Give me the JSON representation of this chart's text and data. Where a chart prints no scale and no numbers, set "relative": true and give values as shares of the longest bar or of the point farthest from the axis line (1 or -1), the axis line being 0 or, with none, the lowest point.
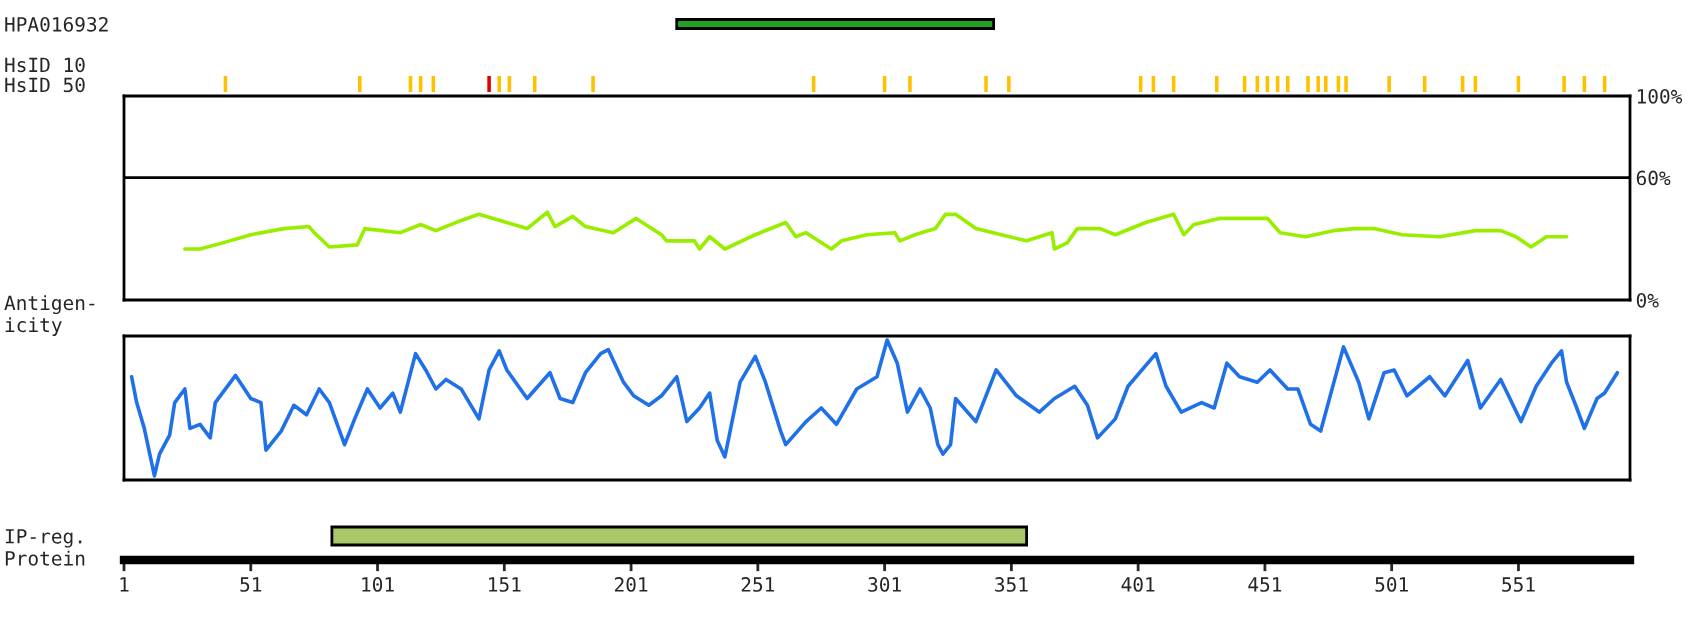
{
  "chart_data": [
    {
      "type": "bar",
      "orientation": "horizontal",
      "categories": [
        "HPA016932"
      ],
      "base": [
        219
      ],
      "values": [
        125
      ],
      "colors": [
        "#22a022"
      ],
      "xlim": [
        1,
        595
      ],
      "tick_labels": "y"
    },
    {
      "type": "bar",
      "ylabel": "HsID 10",
      "relative": true,
      "x": [
        41,
        94,
        114,
        118,
        123,
        145,
        149,
        153,
        163,
        186,
        273,
        301,
        311,
        341,
        350,
        402,
        407,
        415,
        432,
        443,
        448,
        452,
        456,
        460,
        468,
        472,
        475,
        480,
        483,
        500,
        514,
        529,
        534,
        551,
        569,
        577,
        585
      ],
      "values": [
        1,
        1,
        1,
        1,
        1,
        1,
        1,
        1,
        1,
        1,
        1,
        1,
        1,
        1,
        1,
        1,
        1,
        1,
        1,
        1,
        1,
        1,
        1,
        1,
        1,
        1,
        1,
        1,
        1,
        1,
        1,
        1,
        1,
        1,
        1,
        1,
        1
      ],
      "colors": [
        "#ffc000",
        "#ffc000",
        "#ffc000",
        "#ffc000",
        "#ffc000",
        "#e00000",
        "#ffc000",
        "#ffc000",
        "#ffc000",
        "#ffc000",
        "#ffc000",
        "#ffc000",
        "#ffc000",
        "#ffc000",
        "#ffc000",
        "#ffc000",
        "#ffc000",
        "#ffc000",
        "#ffc000",
        "#ffc000",
        "#ffc000",
        "#ffc000",
        "#ffc000",
        "#ffc000",
        "#ffc000",
        "#ffc000",
        "#ffc000",
        "#ffc000",
        "#ffc000",
        "#ffc000",
        "#ffc000",
        "#ffc000",
        "#ffc000",
        "#ffc000",
        "#ffc000",
        "#ffc000",
        "#ffc000"
      ],
      "xlim": [
        1,
        595
      ],
      "tick_labels": false
    },
    {
      "type": "line",
      "ylabel": "HsID 50",
      "xlim": [
        1,
        595
      ],
      "ylim": [
        0,
        100
      ],
      "yticks": [
        {
          "value": 0,
          "label": "0%"
        },
        {
          "value": 60,
          "label": "60%"
        },
        {
          "value": 100,
          "label": "100%"
        }
      ],
      "tick_labels": "y",
      "ref_lines": [
        {
          "axis": "y",
          "value": 60,
          "color": "#000000"
        }
      ],
      "series": [
        {
          "color": "#99ee00",
          "x": [
            25,
            31,
            40,
            51,
            64,
            74,
            76,
            82,
            93,
            96,
            110,
            118,
            124,
            134,
            141,
            152,
            160,
            168,
            171,
            178,
            183,
            194,
            203,
            213,
            215,
            226,
            228,
            232,
            238,
            250,
            262,
            266,
            270,
            280,
            284,
            294,
            305,
            307,
            313,
            321,
            325,
            329,
            337,
            347,
            357,
            367,
            368,
            373,
            377,
            386,
            392,
            404,
            415,
            419,
            423,
            433,
            452,
            457,
            467,
            478,
            486,
            494,
            505,
            520,
            534,
            544,
            550,
            556,
            562,
            570
          ],
          "values": [
            25,
            25,
            28,
            32,
            35,
            36,
            33,
            26,
            27,
            35,
            33,
            37,
            34,
            39,
            42,
            38,
            35,
            43,
            36,
            41,
            36,
            33,
            40,
            32,
            29,
            29,
            25,
            31,
            25,
            32,
            38,
            31,
            33,
            25,
            29,
            32,
            33,
            29,
            32,
            35,
            42,
            42,
            35,
            32,
            29,
            33,
            25,
            28,
            35,
            35,
            32,
            38,
            42,
            32,
            37,
            40,
            40,
            33,
            31,
            34,
            35,
            35,
            32,
            31,
            34,
            34,
            31,
            26,
            31,
            31
          ]
        }
      ]
    },
    {
      "type": "line",
      "ylabel": "Antigen-\nicity",
      "relative": true,
      "xlim": [
        1,
        595
      ],
      "tick_labels": false,
      "series": [
        {
          "color": "#2070e8",
          "x": [
            4,
            6,
            9,
            13,
            15,
            19,
            21,
            25,
            27,
            31,
            35,
            37,
            45,
            51,
            55,
            57,
            63,
            68,
            73,
            78,
            82,
            88,
            92,
            97,
            102,
            107,
            110,
            116,
            120,
            124,
            128,
            134,
            141,
            145,
            149,
            152,
            160,
            169,
            173,
            178,
            183,
            189,
            192,
            198,
            202,
            208,
            213,
            219,
            223,
            228,
            232,
            235,
            238,
            244,
            250,
            254,
            260,
            262,
            270,
            276,
            282,
            290,
            298,
            302,
            306,
            310,
            315,
            319,
            322,
            324,
            327,
            329,
            337,
            345,
            353,
            362,
            368,
            376,
            381,
            385,
            392,
            397,
            408,
            412,
            418,
            426,
            431,
            436,
            441,
            448,
            453,
            460,
            464,
            469,
            473,
            482,
            488,
            492,
            498,
            502,
            507,
            516,
            522,
            531,
            536,
            544,
            552,
            558,
            564,
            568,
            570,
            574,
            577,
            582,
            585,
            590
          ],
          "values": [
            0.73,
            0.54,
            0.35,
            0.0,
            0.16,
            0.3,
            0.54,
            0.64,
            0.35,
            0.38,
            0.28,
            0.54,
            0.74,
            0.57,
            0.54,
            0.19,
            0.33,
            0.52,
            0.45,
            0.64,
            0.54,
            0.23,
            0.42,
            0.64,
            0.5,
            0.61,
            0.47,
            0.9,
            0.78,
            0.64,
            0.71,
            0.64,
            0.42,
            0.78,
            0.92,
            0.78,
            0.57,
            0.76,
            0.57,
            0.54,
            0.76,
            0.9,
            0.93,
            0.69,
            0.59,
            0.52,
            0.59,
            0.73,
            0.4,
            0.5,
            0.61,
            0.26,
            0.14,
            0.69,
            0.88,
            0.69,
            0.33,
            0.23,
            0.4,
            0.5,
            0.38,
            0.64,
            0.73,
            1.0,
            0.83,
            0.47,
            0.64,
            0.5,
            0.23,
            0.16,
            0.23,
            0.57,
            0.4,
            0.78,
            0.59,
            0.47,
            0.57,
            0.66,
            0.52,
            0.28,
            0.42,
            0.66,
            0.9,
            0.66,
            0.47,
            0.54,
            0.5,
            0.83,
            0.73,
            0.69,
            0.78,
            0.64,
            0.64,
            0.38,
            0.33,
            0.95,
            0.69,
            0.42,
            0.76,
            0.78,
            0.59,
            0.73,
            0.59,
            0.85,
            0.5,
            0.71,
            0.4,
            0.66,
            0.83,
            0.92,
            0.69,
            0.5,
            0.35,
            0.57,
            0.61,
            0.76
          ]
        }
      ]
    },
    {
      "type": "bar",
      "orientation": "horizontal",
      "categories": [
        "IP-reg."
      ],
      "base": [
        83
      ],
      "values": [
        274
      ],
      "colors": [
        "#a8c86a"
      ],
      "xlabel": "Protein",
      "xlim": [
        1,
        595
      ],
      "xticks": [
        1,
        51,
        101,
        151,
        201,
        251,
        301,
        351,
        401,
        451,
        501,
        551
      ]
    }
  ]
}
